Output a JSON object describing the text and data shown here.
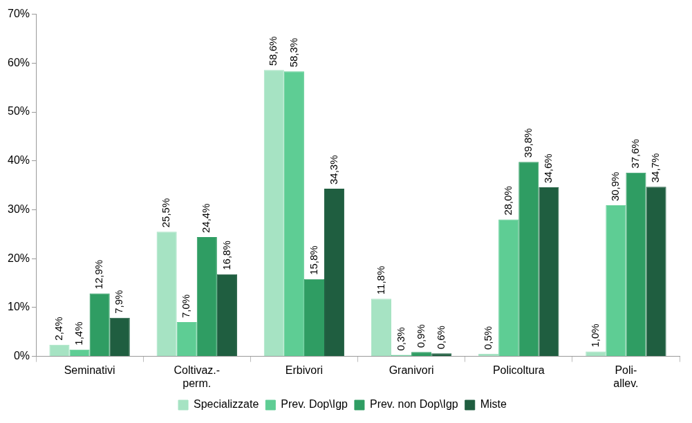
{
  "chart_data": {
    "type": "bar",
    "categories": [
      "Seminativi",
      "Coltivaz.-\nperm.",
      "Erbivori",
      "Granivori",
      "Policoltura",
      "Poli-\nallev."
    ],
    "series": [
      {
        "name": "Specializzate",
        "color": "#a6e3c3",
        "values": [
          2.4,
          25.5,
          58.6,
          11.8,
          0.5,
          1.0
        ],
        "value_labels": [
          "2,4%",
          "25,5%",
          "58,6%",
          "11,8%",
          "0,5%",
          "1,0%"
        ]
      },
      {
        "name": "Prev. Dop\\Igp",
        "color": "#5ecd94",
        "values": [
          1.4,
          7.0,
          58.3,
          0.3,
          28.0,
          30.9
        ],
        "value_labels": [
          "1,4%",
          "7,0%",
          "58,3%",
          "0,3%",
          "28,0%",
          "30,9%"
        ]
      },
      {
        "name": "Prev. non Dop\\Igp",
        "color": "#2f9d63",
        "values": [
          12.9,
          24.4,
          15.8,
          0.9,
          39.8,
          37.6
        ],
        "value_labels": [
          "12,9%",
          "24,4%",
          "15,8%",
          "0,9%",
          "39,8%",
          "37,6%"
        ]
      },
      {
        "name": "Miste",
        "color": "#1f5e40",
        "values": [
          7.9,
          16.8,
          34.3,
          0.6,
          34.6,
          34.7
        ],
        "value_labels": [
          "7,9%",
          "16,8%",
          "34,3%",
          "0,6%",
          "34,6%",
          "34,7%"
        ]
      }
    ],
    "ylim": [
      0,
      70
    ],
    "yticks": [
      {
        "value": 0,
        "label": "0%"
      },
      {
        "value": 10,
        "label": "10%"
      },
      {
        "value": 20,
        "label": "20%"
      },
      {
        "value": 30,
        "label": "30%"
      },
      {
        "value": 40,
        "label": "40%"
      },
      {
        "value": 50,
        "label": "50%"
      },
      {
        "value": 60,
        "label": "60%"
      },
      {
        "value": 70,
        "label": "70%"
      }
    ],
    "grid": false,
    "legend": "bottom"
  }
}
